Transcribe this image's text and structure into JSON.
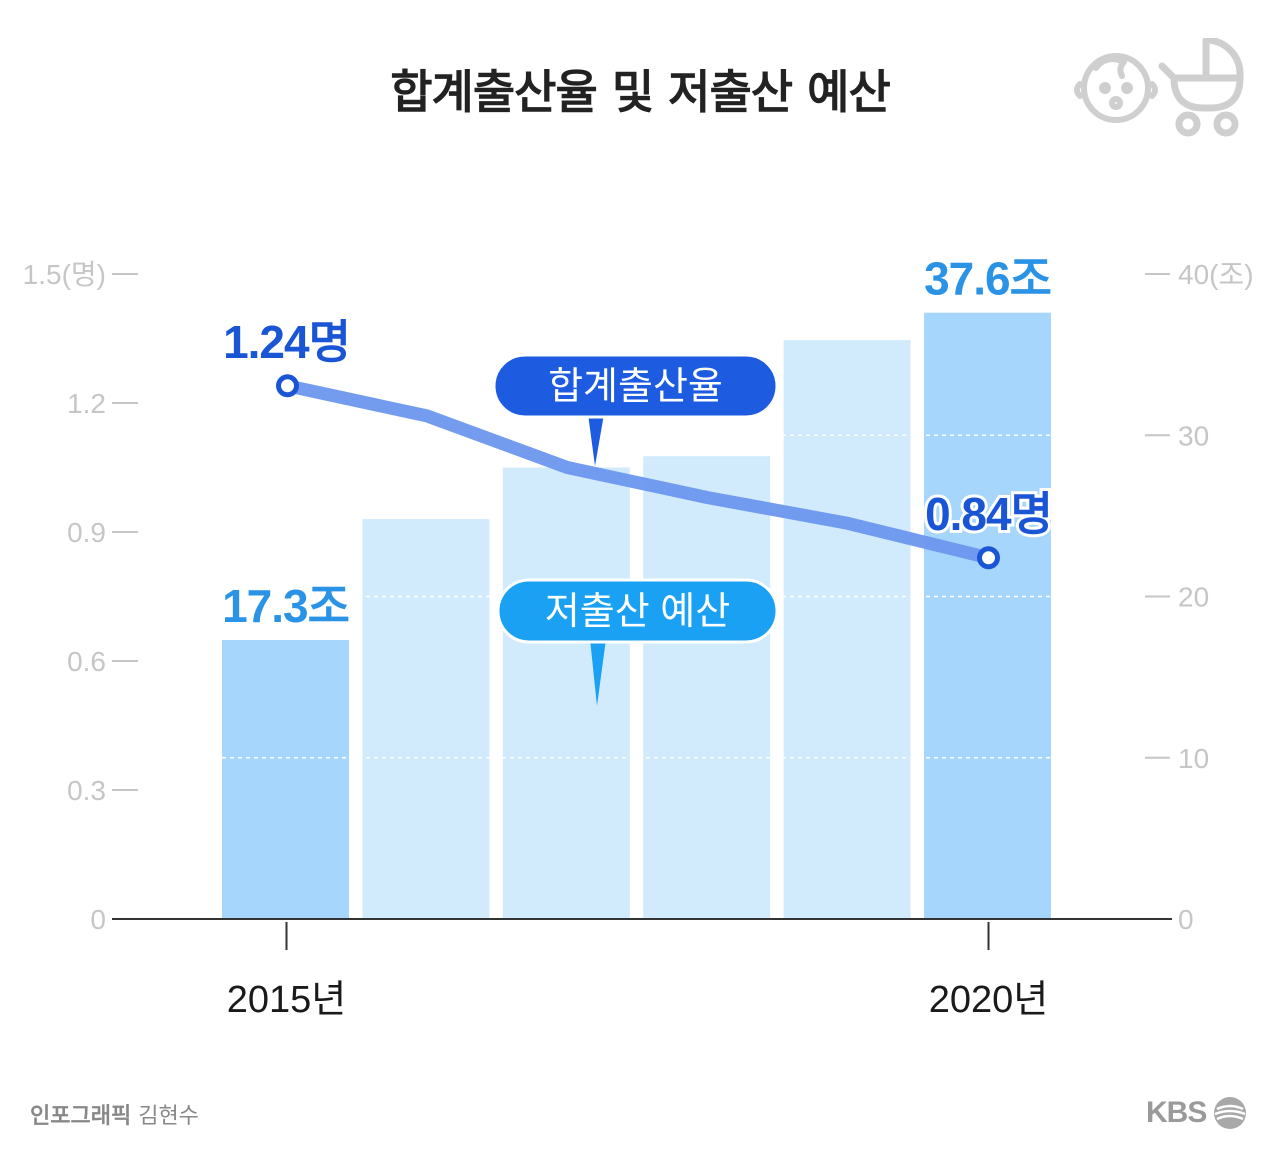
{
  "title": "합계출산율 및 저출산 예산",
  "credit": {
    "role": "인포그래픽",
    "name": "김현수"
  },
  "logo": {
    "text": "KBS"
  },
  "icons": [
    "baby-face-icon",
    "stroller-icon",
    "kbs-globe-icon"
  ],
  "colors": {
    "bar_highlight": "#a6d6fb",
    "bar_normal": "#d1ebfd",
    "line": "#6b97ee",
    "line_label": "#1a55d6",
    "bar_label": "#2a93e6",
    "bubble_rate": "#1d5ce0",
    "bubble_budget": "#1aa1f4",
    "axis_text": "#c6c6c6"
  },
  "chart_data": {
    "type": "bar",
    "title": "합계출산율 및 저출산 예산",
    "categories": [
      "2015년",
      "",
      "",
      "",
      "",
      "2020년"
    ],
    "series": [
      {
        "name": "저출산 예산",
        "axis": "right",
        "unit": "조",
        "values": [
          17.3,
          24.8,
          28.0,
          28.7,
          35.9,
          37.6
        ],
        "labels": [
          "17.3조",
          "",
          "",
          "",
          "",
          "37.6조"
        ]
      },
      {
        "name": "합계출산율",
        "type": "line",
        "axis": "left",
        "unit": "명",
        "values": [
          1.24,
          1.17,
          1.05,
          0.98,
          0.92,
          0.84
        ],
        "labels": [
          "1.24명",
          "",
          "",
          "",
          "",
          "0.84명"
        ]
      }
    ],
    "left_axis": {
      "range": [
        0,
        1.5
      ],
      "ticks": [
        0,
        0.3,
        0.6,
        0.9,
        1.2,
        1.5
      ],
      "tick_labels": [
        "0",
        "0.3",
        "0.6",
        "0.9",
        "1.2",
        "1.5(명)"
      ]
    },
    "right_axis": {
      "range": [
        0,
        40
      ],
      "ticks": [
        0,
        10,
        20,
        30,
        40
      ],
      "tick_labels": [
        "0",
        "10",
        "20",
        "30",
        "40(조)"
      ]
    },
    "legend": [
      "합계출산율",
      "저출산 예산"
    ],
    "gridlines": "dashed"
  }
}
